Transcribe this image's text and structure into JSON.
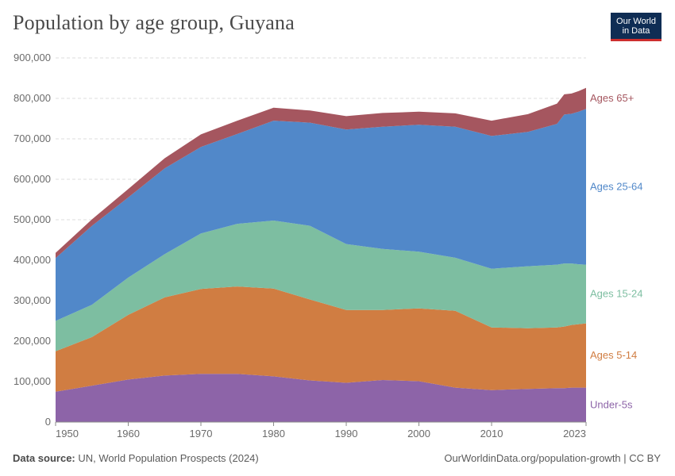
{
  "header": {
    "title": "Population by age group, Guyana",
    "logo_line1": "Our World",
    "logo_line2": "in Data"
  },
  "footer": {
    "source_label": "Data source:",
    "source_text": "UN, World Population Prospects (2024)",
    "url_text": "OurWorldinData.org/population-growth | CC BY"
  },
  "chart_data": {
    "type": "area",
    "stacked": true,
    "title": "Population by age group, Guyana",
    "xlabel": "",
    "ylabel": "",
    "xlim": [
      1950,
      2023
    ],
    "ylim": [
      0,
      900000
    ],
    "yticks": [
      0,
      100000,
      200000,
      300000,
      400000,
      500000,
      600000,
      700000,
      800000,
      900000
    ],
    "ytick_labels": [
      "0",
      "100,000",
      "200,000",
      "300,000",
      "400,000",
      "500,000",
      "600,000",
      "700,000",
      "800,000",
      "900,000"
    ],
    "xticks": [
      1950,
      1960,
      1970,
      1980,
      1990,
      2000,
      2010,
      2023
    ],
    "xtick_labels": [
      "1950",
      "1960",
      "1970",
      "1980",
      "1990",
      "2000",
      "2010",
      "2023"
    ],
    "grid": true,
    "x": [
      1950,
      1955,
      1960,
      1965,
      1970,
      1975,
      1980,
      1985,
      1990,
      1995,
      2000,
      2005,
      2010,
      2015,
      2019,
      2020,
      2021,
      2022,
      2023
    ],
    "series": [
      {
        "name": "Under-5s",
        "color": "#8d64a8",
        "values": [
          75000,
          90000,
          105000,
          115000,
          119000,
          119000,
          113000,
          103000,
          97000,
          104000,
          101000,
          85000,
          79000,
          82000,
          84000,
          84000,
          85000,
          85000,
          85000
        ]
      },
      {
        "name": "Ages 5-14",
        "color": "#d07d42",
        "values": [
          100000,
          120000,
          160000,
          193000,
          210000,
          216000,
          217000,
          200000,
          180000,
          173000,
          180000,
          190000,
          155000,
          150000,
          150000,
          152000,
          155000,
          157000,
          159000
        ]
      },
      {
        "name": "Ages 15-24",
        "color": "#7dbea1",
        "values": [
          75000,
          80000,
          92000,
          107000,
          137000,
          155000,
          168000,
          182000,
          163000,
          151000,
          140000,
          131000,
          145000,
          153000,
          155000,
          156000,
          152000,
          148000,
          145000
        ]
      },
      {
        "name": "Ages 25-64",
        "color": "#5188c9",
        "values": [
          155000,
          195000,
          198000,
          212000,
          214000,
          222000,
          247000,
          255000,
          283000,
          302000,
          314000,
          324000,
          328000,
          332000,
          348000,
          368000,
          370000,
          377000,
          385000
        ]
      },
      {
        "name": "Ages 65+",
        "color": "#a5565f",
        "values": [
          13000,
          16000,
          21000,
          25000,
          31000,
          33000,
          32000,
          30000,
          33000,
          34000,
          32000,
          33000,
          38000,
          44000,
          50000,
          50000,
          50000,
          51000,
          52000
        ]
      }
    ],
    "series_labels": [
      "Under-5s",
      "Ages 5-14",
      "Ages 15-24",
      "Ages 25-64",
      "Ages 65+"
    ]
  }
}
